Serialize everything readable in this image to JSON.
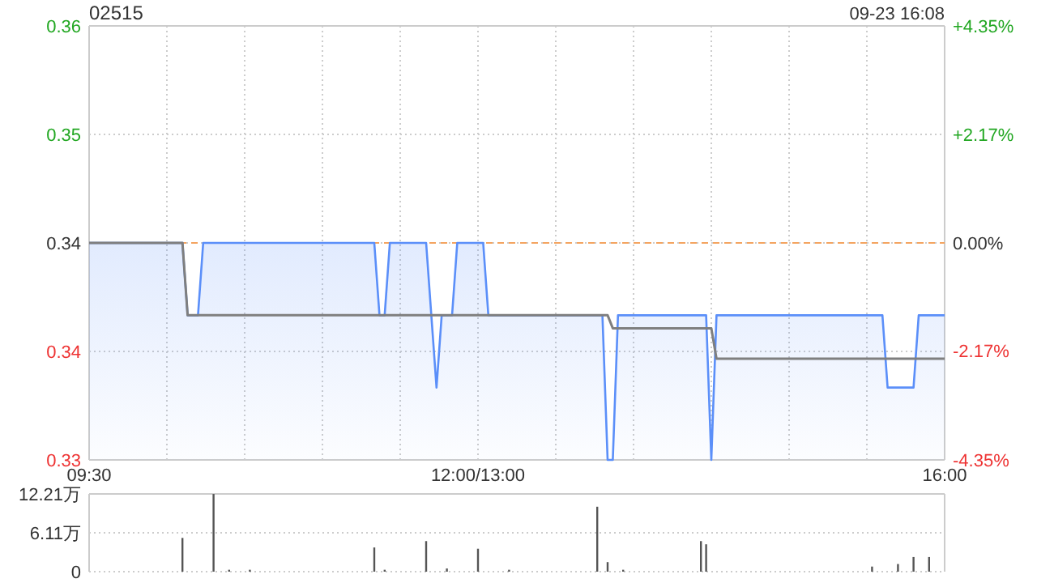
{
  "chart_data": [
    {
      "type": "line",
      "title": "02515",
      "annotations": [
        "09-23 16:08"
      ],
      "categories": [
        "09:30",
        null,
        null,
        null,
        null,
        null,
        null,
        null,
        null,
        null,
        null,
        null,
        null,
        null,
        null,
        null,
        null,
        null,
        null,
        null,
        null,
        null,
        null,
        null,
        null,
        null,
        null,
        null,
        null,
        null,
        null,
        null,
        null,
        null,
        null,
        null,
        null,
        null,
        null,
        null,
        null,
        null,
        null,
        null,
        null,
        null,
        null,
        null,
        null,
        null,
        null,
        null,
        null,
        null,
        null,
        null,
        null,
        null,
        null,
        null,
        null,
        null,
        null,
        null,
        null,
        null,
        null,
        null,
        null,
        null,
        null,
        null,
        null,
        null,
        null,
        "12:00/13:00",
        null,
        null,
        null,
        null,
        null,
        null,
        null,
        null,
        null,
        null,
        null,
        null,
        null,
        null,
        null,
        null,
        null,
        null,
        null,
        null,
        null,
        null,
        null,
        null,
        null,
        null,
        null,
        null,
        null,
        null,
        null,
        null,
        null,
        null,
        null,
        null,
        null,
        null,
        null,
        null,
        null,
        null,
        null,
        null,
        null,
        null,
        null,
        null,
        null,
        null,
        null,
        null,
        null,
        null,
        null,
        null,
        null,
        null,
        null,
        null,
        null,
        null,
        null,
        null,
        null,
        null,
        null,
        null,
        null,
        null,
        null,
        null,
        null,
        null,
        null,
        null,
        null,
        null,
        null,
        null,
        null,
        null,
        null,
        null,
        null,
        null,
        null,
        null,
        null,
        "16:00"
      ],
      "ylim": [
        0.33,
        0.36
      ],
      "yticks": [
        {
          "value": 0.36,
          "label": "0.36"
        },
        {
          "value": 0.3525,
          "label": "0.35"
        },
        {
          "value": 0.345,
          "label": "0.34"
        },
        {
          "value": 0.3375,
          "label": "0.34"
        },
        {
          "value": 0.33,
          "label": "0.33"
        }
      ],
      "y2lim": [
        -4.35,
        4.35
      ],
      "y2ticks": [
        {
          "value": 4.35,
          "label": "+4.35%"
        },
        {
          "value": 2.17,
          "label": "+2.17%"
        },
        {
          "value": 0,
          "label": "0.00%"
        },
        {
          "value": -2.17,
          "label": "-2.17%"
        },
        {
          "value": -4.35,
          "label": "-4.35%"
        }
      ],
      "grid": true,
      "ref_lines": [
        {
          "axis": "y",
          "value": 0.345,
          "color": "#f4a460",
          "line_style": "dashed"
        }
      ],
      "series": [
        {
          "type": "area",
          "color": "#5b8ff9",
          "values": [
            0.345,
            0.345,
            0.345,
            0.345,
            0.345,
            0.345,
            0.345,
            0.345,
            0.345,
            0.345,
            0.345,
            0.345,
            0.345,
            0.345,
            0.345,
            0.345,
            0.345,
            0.345,
            0.345,
            0.34,
            0.34,
            0.34,
            0.345,
            0.345,
            0.345,
            0.345,
            0.345,
            0.345,
            0.345,
            0.345,
            0.345,
            0.345,
            0.345,
            0.345,
            0.345,
            0.345,
            0.345,
            0.345,
            0.345,
            0.345,
            0.345,
            0.345,
            0.345,
            0.345,
            0.345,
            0.345,
            0.345,
            0.345,
            0.345,
            0.345,
            0.345,
            0.345,
            0.345,
            0.345,
            0.345,
            0.345,
            0.34,
            0.34,
            0.345,
            0.345,
            0.345,
            0.345,
            0.345,
            0.345,
            0.345,
            0.345,
            0.34,
            0.335,
            0.34,
            0.34,
            0.34,
            0.345,
            0.345,
            0.345,
            0.345,
            0.345,
            0.345,
            0.34,
            0.34,
            0.34,
            0.34,
            0.34,
            0.34,
            0.34,
            0.34,
            0.34,
            0.34,
            0.34,
            0.34,
            0.34,
            0.34,
            0.34,
            0.34,
            0.34,
            0.34,
            0.34,
            0.34,
            0.34,
            0.34,
            0.34,
            0.33,
            0.33,
            0.34,
            0.34,
            0.34,
            0.34,
            0.34,
            0.34,
            0.34,
            0.34,
            0.34,
            0.34,
            0.34,
            0.34,
            0.34,
            0.34,
            0.34,
            0.34,
            0.34,
            0.34,
            0.33,
            0.34,
            0.34,
            0.34,
            0.34,
            0.34,
            0.34,
            0.34,
            0.34,
            0.34,
            0.34,
            0.34,
            0.34,
            0.34,
            0.34,
            0.34,
            0.34,
            0.34,
            0.34,
            0.34,
            0.34,
            0.34,
            0.34,
            0.34,
            0.34,
            0.34,
            0.34,
            0.34,
            0.34,
            0.34,
            0.34,
            0.34,
            0.34,
            0.34,
            0.335,
            0.335,
            0.335,
            0.335,
            0.335,
            0.335,
            0.34,
            0.34,
            0.34,
            0.34,
            0.34,
            0.34
          ]
        },
        {
          "type": "line",
          "color": "#7f7f7f",
          "values": [
            0.345,
            0.345,
            0.345,
            0.345,
            0.345,
            0.345,
            0.345,
            0.345,
            0.345,
            0.345,
            0.345,
            0.345,
            0.345,
            0.345,
            0.345,
            0.345,
            0.345,
            0.345,
            0.345,
            0.34,
            0.34,
            0.34,
            0.34,
            0.34,
            0.34,
            0.34,
            0.34,
            0.34,
            0.34,
            0.34,
            0.34,
            0.34,
            0.34,
            0.34,
            0.34,
            0.34,
            0.34,
            0.34,
            0.34,
            0.34,
            0.34,
            0.34,
            0.34,
            0.34,
            0.34,
            0.34,
            0.34,
            0.34,
            0.34,
            0.34,
            0.34,
            0.34,
            0.34,
            0.34,
            0.34,
            0.34,
            0.34,
            0.34,
            0.34,
            0.34,
            0.34,
            0.34,
            0.34,
            0.34,
            0.34,
            0.34,
            0.34,
            0.34,
            0.34,
            0.34,
            0.34,
            0.34,
            0.34,
            0.34,
            0.34,
            0.34,
            0.34,
            0.34,
            0.34,
            0.34,
            0.34,
            0.34,
            0.34,
            0.34,
            0.34,
            0.34,
            0.34,
            0.34,
            0.34,
            0.34,
            0.34,
            0.34,
            0.34,
            0.34,
            0.34,
            0.34,
            0.34,
            0.34,
            0.34,
            0.34,
            0.34,
            0.3391,
            0.3391,
            0.3391,
            0.3391,
            0.3391,
            0.3391,
            0.3391,
            0.3391,
            0.3391,
            0.3391,
            0.3391,
            0.3391,
            0.3391,
            0.3391,
            0.3391,
            0.3391,
            0.3391,
            0.3391,
            0.3391,
            0.3391,
            0.337,
            0.337,
            0.337,
            0.337,
            0.337,
            0.337,
            0.337,
            0.337,
            0.337,
            0.337,
            0.337,
            0.337,
            0.337,
            0.337,
            0.337,
            0.337,
            0.337,
            0.337,
            0.337,
            0.337,
            0.337,
            0.337,
            0.337,
            0.337,
            0.337,
            0.337,
            0.337,
            0.337,
            0.337,
            0.337,
            0.337,
            0.337,
            0.337,
            0.337,
            0.337,
            0.337,
            0.337,
            0.337,
            0.337,
            0.337,
            0.337,
            0.337,
            0.337,
            0.337,
            0.337
          ]
        }
      ]
    },
    {
      "type": "bar",
      "color": "#555555",
      "tick_labels": "y",
      "grid": "y",
      "ylim": [
        0,
        12.21
      ],
      "yticks": [
        {
          "value": 12.21,
          "label": "12.21万"
        },
        {
          "value": 6.11,
          "label": "6.11万"
        },
        0
      ],
      "categories": [
        null,
        null,
        null,
        null,
        null,
        null,
        null,
        null,
        null,
        null,
        null,
        null,
        null,
        null,
        null,
        null,
        null,
        null,
        null,
        null,
        null,
        null,
        null,
        null,
        null,
        null,
        null,
        null,
        null,
        null,
        null,
        null,
        null,
        null,
        null,
        null,
        null,
        null,
        null,
        null,
        null,
        null,
        null,
        null,
        null,
        null,
        null,
        null,
        null,
        null,
        null,
        null,
        null,
        null,
        null,
        null,
        null,
        null,
        null,
        null,
        null,
        null,
        null,
        null,
        null,
        null,
        null,
        null,
        null,
        null,
        null,
        null,
        null,
        null,
        null,
        null,
        null,
        null,
        null,
        null,
        null,
        null,
        null,
        null,
        null,
        null,
        null,
        null,
        null,
        null,
        null,
        null,
        null,
        null,
        null,
        null,
        null,
        null,
        null,
        null,
        null,
        null,
        null,
        null,
        null,
        null,
        null,
        null,
        null,
        null,
        null,
        null,
        null,
        null,
        null,
        null,
        null,
        null,
        null,
        null,
        null,
        null,
        null,
        null,
        null,
        null,
        null,
        null,
        null,
        null,
        null,
        null,
        null,
        null,
        null,
        null,
        null,
        null,
        null,
        null,
        null,
        null,
        null,
        null,
        null,
        null,
        null,
        null,
        null,
        null,
        null,
        null,
        null,
        null,
        null,
        null,
        null,
        null,
        null,
        null,
        null,
        null,
        null,
        null,
        null,
        null
      ],
      "values": [
        0,
        0,
        0,
        0,
        0,
        0,
        0,
        0,
        0,
        0,
        0,
        0,
        0,
        0,
        0,
        0,
        0,
        0,
        5.3,
        0,
        0,
        0,
        0,
        0,
        12.2,
        0,
        0,
        0.3,
        0,
        0,
        0,
        0.3,
        0,
        0,
        0,
        0,
        0,
        0,
        0,
        0,
        0,
        0,
        0,
        0,
        0,
        0,
        0,
        0,
        0,
        0,
        0,
        0,
        0,
        0,
        0,
        3.8,
        0,
        0.3,
        0,
        0,
        0,
        0,
        0,
        0,
        0,
        4.8,
        0,
        0,
        0,
        0.5,
        0,
        0,
        0,
        0,
        0,
        3.6,
        0,
        0,
        0,
        0,
        0,
        0.3,
        0,
        0,
        0,
        0,
        0,
        0,
        0,
        0,
        0,
        0,
        0,
        0,
        0,
        0,
        0,
        0,
        10.2,
        0,
        1.5,
        0,
        0,
        0.3,
        0,
        0,
        0,
        0,
        0,
        0,
        0,
        0,
        0,
        0,
        0,
        0,
        0,
        0,
        4.8,
        4.3,
        0,
        0,
        0,
        0,
        0,
        0,
        0,
        0,
        0,
        0,
        0,
        0,
        0,
        0,
        0,
        0,
        0,
        0,
        0,
        0,
        0,
        0,
        0,
        0,
        0,
        0,
        0,
        0,
        0,
        0,
        0,
        0.8,
        0,
        0,
        0,
        0,
        1.2,
        0,
        0,
        2.3,
        0,
        0,
        2.3,
        0,
        0,
        0
      ]
    }
  ]
}
